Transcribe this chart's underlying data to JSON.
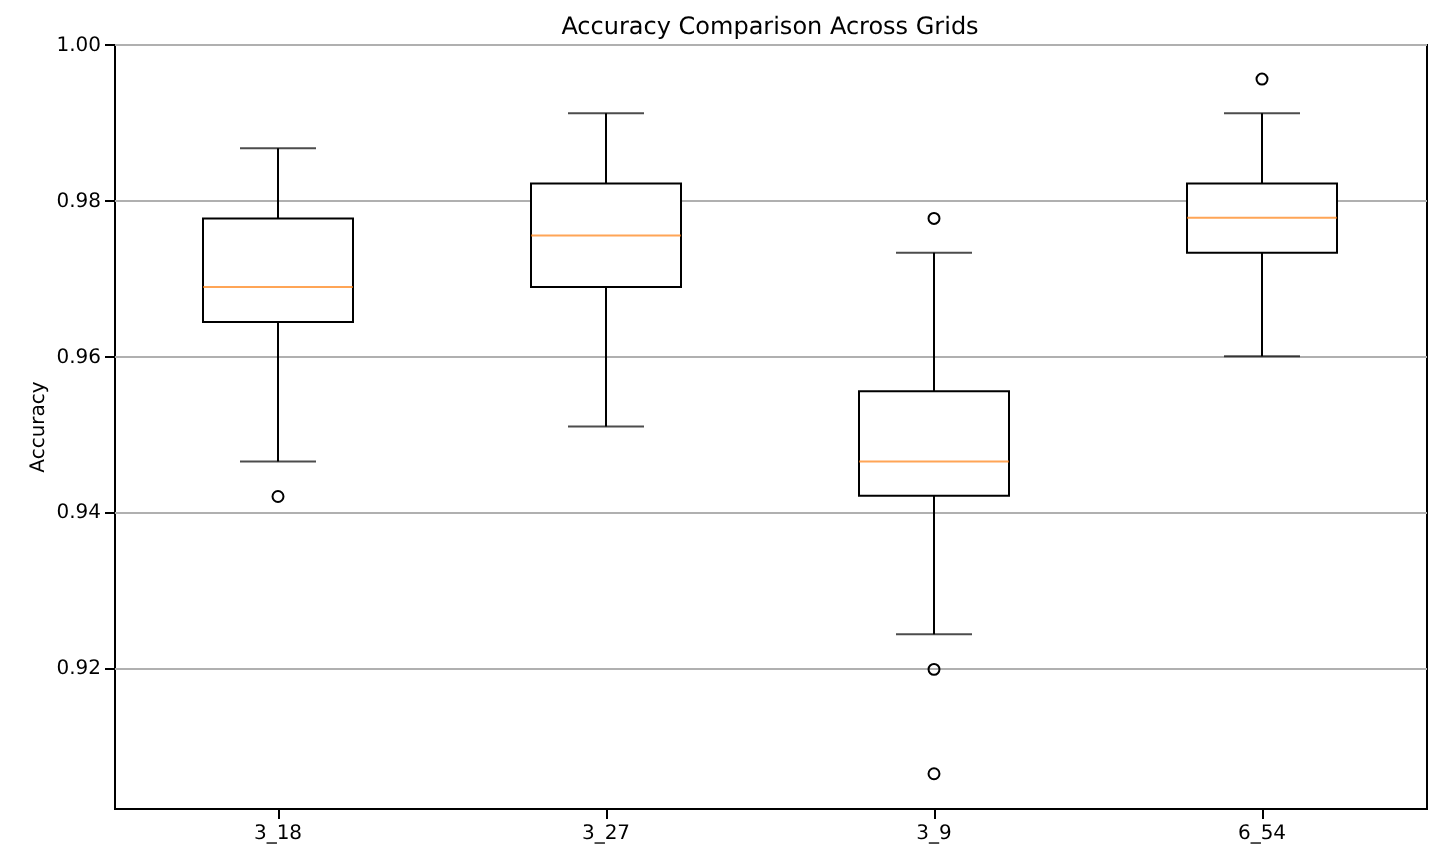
{
  "chart_data": {
    "type": "box",
    "title": "Accuracy Comparison Across Grids",
    "ylabel": "Accuracy",
    "categories": [
      "3_18",
      "3_27",
      "3_9",
      "6_54"
    ],
    "boxes": [
      {
        "low": 0.9464,
        "q1": 0.9643,
        "median": 0.9688,
        "q3": 0.9776,
        "high": 0.9866,
        "outliers": [
          0.9419
        ]
      },
      {
        "low": 0.9509,
        "q1": 0.9688,
        "median": 0.9754,
        "q3": 0.9821,
        "high": 0.9911
      },
      {
        "low": 0.9242,
        "q1": 0.942,
        "median": 0.9464,
        "q3": 0.9554,
        "high": 0.9732,
        "outliers": [
          0.9776,
          0.9197,
          0.9063
        ]
      },
      {
        "low": 0.9599,
        "q1": 0.9732,
        "median": 0.9777,
        "q3": 0.9821,
        "high": 0.9911,
        "outliers": [
          0.9955
        ]
      }
    ],
    "ylim": [
      0.9019,
      1.0
    ],
    "yticks": [
      0.92,
      0.94,
      0.96,
      0.98,
      {
        "value": 1.0,
        "label": "1.00"
      }
    ],
    "grid": "y"
  }
}
